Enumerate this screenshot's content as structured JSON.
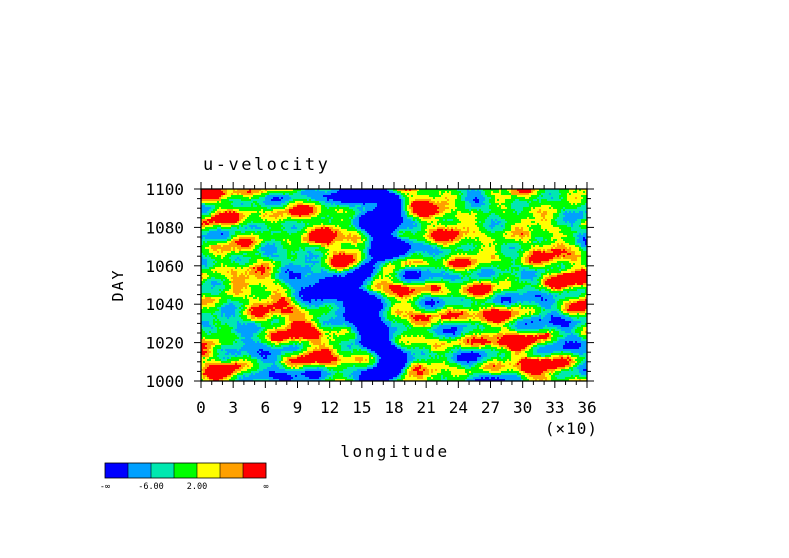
{
  "chart_data": {
    "type": "heatmap",
    "title": "u-velocity",
    "xlabel": "longitude",
    "xscale_note": "(×10)",
    "ylabel": "DAY",
    "xlim": [
      0,
      36
    ],
    "ylim": [
      1000,
      1100
    ],
    "x_ticks": [
      "0",
      "3",
      "6",
      "9",
      "12",
      "15",
      "18",
      "21",
      "24",
      "27",
      "30",
      "33",
      "36"
    ],
    "y_ticks": [
      "1000",
      "1020",
      "1040",
      "1060",
      "1080",
      "1100"
    ],
    "colorbar": {
      "colors": [
        "#0000ff",
        "#00a0ff",
        "#00e8b0",
        "#00ff00",
        "#ffff00",
        "#ffa000",
        "#ff0000"
      ],
      "labels": [
        "-∞",
        "-6.00",
        "2.00",
        "∞"
      ]
    }
  }
}
